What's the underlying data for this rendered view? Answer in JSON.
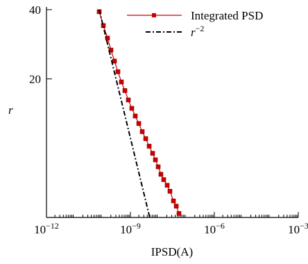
{
  "chart_data": {
    "type": "line",
    "x_label": "IPSD(A)",
    "y_label": "r",
    "xscale": "log",
    "yscale": "log",
    "xlim": [
      1e-12,
      0.001
    ],
    "ylim": [
      5,
      41.1
    ],
    "xticks": [
      {
        "value": 1e-12,
        "label": "10−12"
      },
      {
        "value": 1e-09,
        "label": "10−9"
      },
      {
        "value": 1e-06,
        "label": "10−6"
      },
      {
        "value": 0.001,
        "label": "10−3"
      }
    ],
    "yticks": [
      20,
      40
    ],
    "legend": "upper right",
    "series": [
      {
        "name": "Integrated PSD",
        "color": "#cc0000",
        "marker": "square",
        "dash": "solid",
        "x": [
          7.66e-11,
          1.08e-10,
          1.52e-10,
          2.02e-10,
          2.69e-10,
          3.58e-10,
          4.76e-10,
          6.34e-10,
          8.43e-10,
          1.12e-09,
          1.49e-09,
          1.99e-09,
          2.64e-09,
          3.52e-09,
          4.68e-09,
          6.22e-09,
          7.82e-09,
          9.82e-09,
          1.23e-08,
          1.55e-08,
          2.06e-08,
          2.59e-08,
          3.45e-08,
          4.34e-08,
          5.45e-08
        ],
        "values": [
          39.2,
          34.1,
          30.1,
          26.7,
          23.9,
          21.5,
          19.4,
          17.8,
          16.2,
          14.9,
          13.8,
          12.8,
          11.8,
          11.0,
          10.2,
          9.5,
          8.9,
          8.3,
          7.7,
          7.3,
          6.9,
          6.5,
          5.9,
          5.6,
          5.2
        ]
      },
      {
        "name": "r−2",
        "color": "#000000",
        "marker": "none",
        "dash": "dashdot",
        "x": [
          7.66e-11,
          4.9e-09
        ],
        "values": [
          40,
          5
        ]
      }
    ]
  }
}
